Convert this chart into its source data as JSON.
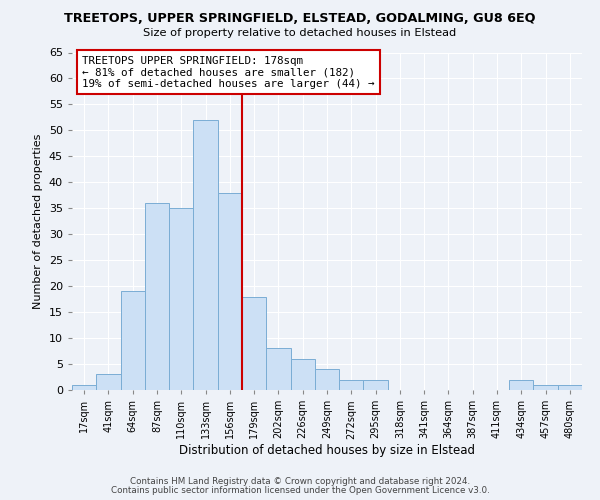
{
  "title": "TREETOPS, UPPER SPRINGFIELD, ELSTEAD, GODALMING, GU8 6EQ",
  "subtitle": "Size of property relative to detached houses in Elstead",
  "xlabel": "Distribution of detached houses by size in Elstead",
  "ylabel": "Number of detached properties",
  "bar_labels": [
    "17sqm",
    "41sqm",
    "64sqm",
    "87sqm",
    "110sqm",
    "133sqm",
    "156sqm",
    "179sqm",
    "202sqm",
    "226sqm",
    "249sqm",
    "272sqm",
    "295sqm",
    "318sqm",
    "341sqm",
    "364sqm",
    "387sqm",
    "411sqm",
    "434sqm",
    "457sqm",
    "480sqm"
  ],
  "bar_values": [
    1,
    3,
    19,
    36,
    35,
    52,
    38,
    18,
    8,
    6,
    4,
    2,
    2,
    0,
    0,
    0,
    0,
    0,
    2,
    1,
    1
  ],
  "bar_color": "#cce0f5",
  "bar_edge_color": "#7aadd4",
  "vline_color": "#cc0000",
  "annotation_text": "TREETOPS UPPER SPRINGFIELD: 178sqm\n← 81% of detached houses are smaller (182)\n19% of semi-detached houses are larger (44) →",
  "annotation_box_color": "#ffffff",
  "annotation_box_edge": "#cc0000",
  "ylim": [
    0,
    65
  ],
  "yticks": [
    0,
    5,
    10,
    15,
    20,
    25,
    30,
    35,
    40,
    45,
    50,
    55,
    60,
    65
  ],
  "bg_color": "#eef2f8",
  "grid_color": "#ffffff",
  "footer1": "Contains HM Land Registry data © Crown copyright and database right 2024.",
  "footer2": "Contains public sector information licensed under the Open Government Licence v3.0."
}
